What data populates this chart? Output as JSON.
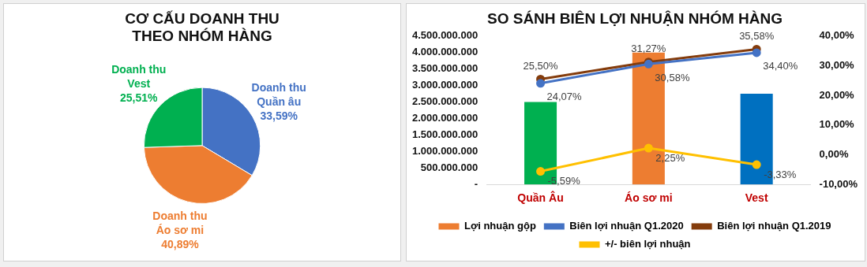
{
  "chart_data": [
    {
      "type": "pie",
      "title": "CƠ CẤU DOANH THU\nTHEO NHÓM HÀNG",
      "categories": [
        "Doanh thu Quần âu",
        "Doanh thu Áo sơ mi",
        "Doanh thu Vest"
      ],
      "values": [
        33.59,
        40.89,
        25.51
      ],
      "colors": [
        "#4472c4",
        "#ed7d31",
        "#00b050"
      ],
      "value_labels": [
        "33,59%",
        "40,89%",
        "25,51%"
      ],
      "legend": false
    },
    {
      "type": "bar",
      "title": "SO SÁNH BIÊN LỢI NHUẬN NHÓM HÀNG",
      "categories": [
        "Quần Âu",
        "Áo sơ mi",
        "Vest"
      ],
      "series": [
        {
          "name": "Lợi nhuận gộp",
          "type": "bar",
          "color": "#ed7d31",
          "colors": [
            "#00b050",
            "#ed7d31",
            "#0070c0"
          ],
          "values": [
            2500000000,
            4000000000,
            2750000000
          ]
        },
        {
          "name": "Biên lợi nhuận Q1.2020",
          "type": "line",
          "axis": "y2",
          "color": "#4472c4",
          "values": [
            24.07,
            30.58,
            34.4
          ],
          "value_labels": [
            "24,07%",
            "30,58%",
            "34,40%"
          ]
        },
        {
          "name": "Biên lợi nhuận Q1.2019",
          "type": "line",
          "axis": "y2",
          "color": "#843c0c",
          "values": [
            25.5,
            31.27,
            35.58
          ],
          "value_labels": [
            "25,50%",
            "31,27%",
            "35,58%"
          ]
        },
        {
          "name": "+/- biên lợi nhuận",
          "type": "line",
          "axis": "y2",
          "color": "#ffc000",
          "values": [
            -5.59,
            2.25,
            -3.33
          ],
          "value_labels": [
            "-5,59%",
            "2,25%",
            "-3,33%"
          ]
        }
      ],
      "ylim": [
        0,
        4500000000
      ],
      "yticks": [
        {
          "value": 0,
          "label": "-"
        },
        {
          "value": 500000000,
          "label": "500.000.000"
        },
        {
          "value": 1000000000,
          "label": "1.000.000.000"
        },
        {
          "value": 1500000000,
          "label": "1.500.000.000"
        },
        {
          "value": 2000000000,
          "label": "2.000.000.000"
        },
        {
          "value": 2500000000,
          "label": "2.500.000.000"
        },
        {
          "value": 3000000000,
          "label": "3.000.000.000"
        },
        {
          "value": 3500000000,
          "label": "3.500.000.000"
        },
        {
          "value": 4000000000,
          "label": "4.000.000.000"
        },
        {
          "value": 4500000000,
          "label": "4.500.000.000"
        }
      ],
      "y2lim": [
        -10,
        40
      ],
      "y2ticks": [
        {
          "value": -10,
          "label": "-10,00%"
        },
        {
          "value": 0,
          "label": "0,00%"
        },
        {
          "value": 10,
          "label": "10,00%"
        },
        {
          "value": 20,
          "label": "20,00%"
        },
        {
          "value": 30,
          "label": "30,00%"
        },
        {
          "value": 40,
          "label": "40,00%"
        }
      ],
      "grid": false,
      "legend": "bottom",
      "marker": "circle",
      "line_style": "solid"
    }
  ]
}
